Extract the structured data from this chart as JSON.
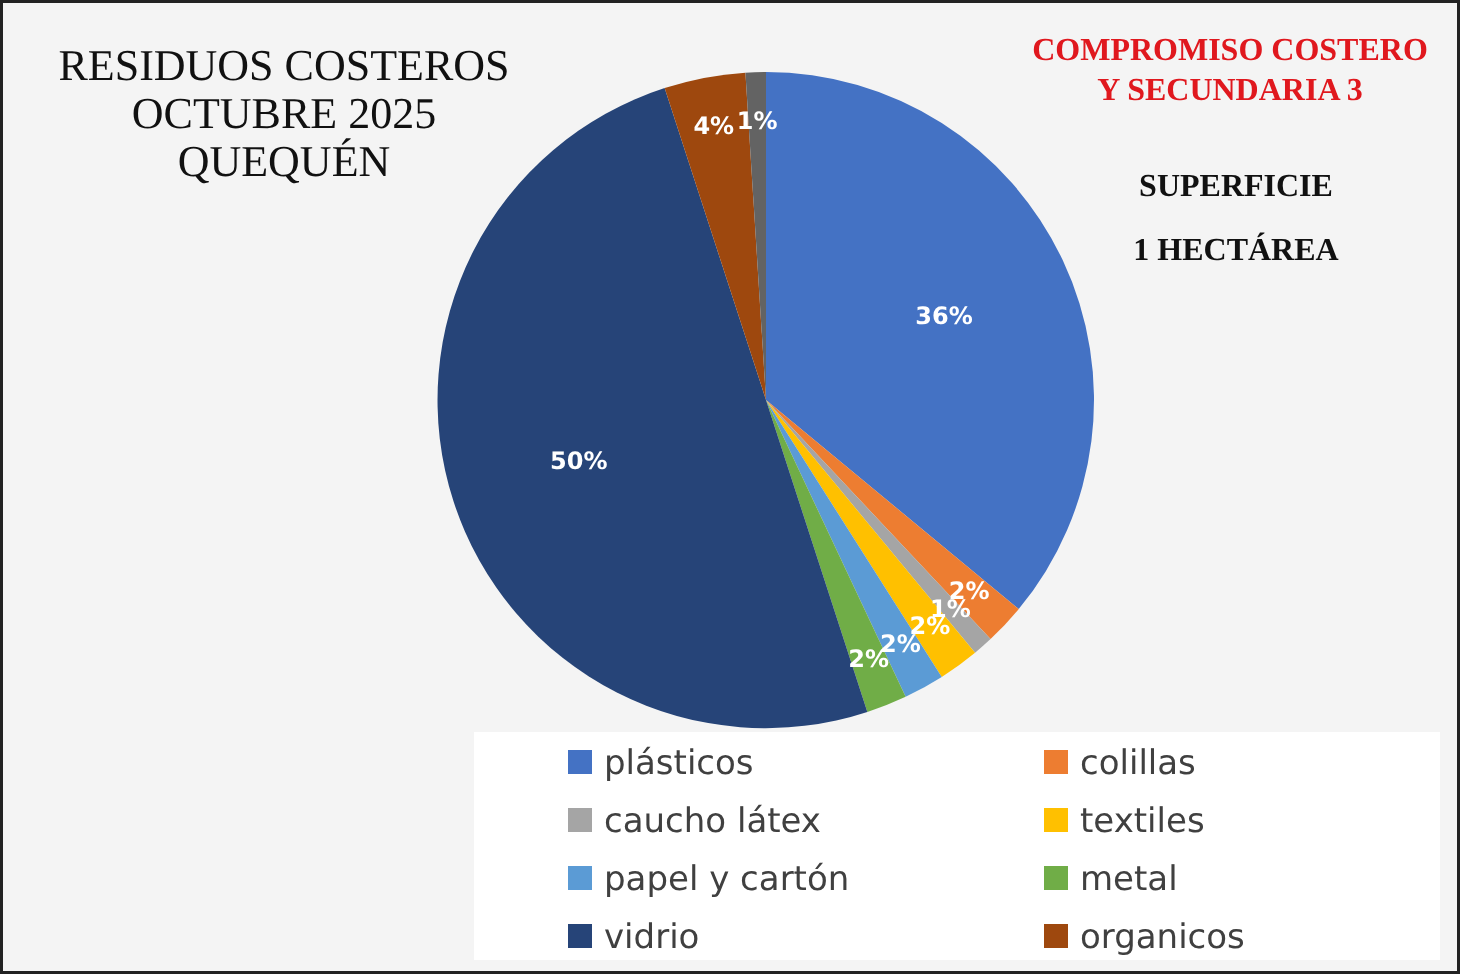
{
  "chart_data": {
    "type": "pie",
    "title": "RESIDUOS COSTEROS\nOCTUBRE 2025\nQUEQUÉN",
    "subtitle": "COMPROMISO COSTERO\nY  SECUNDARIA 3",
    "annotations": [
      "SUPERFICIE",
      "1 HECTÁREA"
    ],
    "categories": [
      "plásticos",
      "colillas",
      "caucho látex",
      "textiles",
      "papel y cartón",
      "metal",
      "vidrio",
      "organicos",
      null
    ],
    "values": [
      36,
      2,
      1,
      2,
      2,
      2,
      50,
      4,
      1
    ],
    "colors": [
      "#4472c4",
      "#ed7d31",
      "#a5a5a5",
      "#ffc000",
      "#5b9bd5",
      "#70ad47",
      "#264478",
      "#9e480e",
      "#636363"
    ],
    "value_labels": [
      "36%",
      "2%",
      "1%",
      "2%",
      "2%",
      "2%",
      "50%",
      "4%",
      "1%"
    ],
    "legend": "bottom"
  }
}
